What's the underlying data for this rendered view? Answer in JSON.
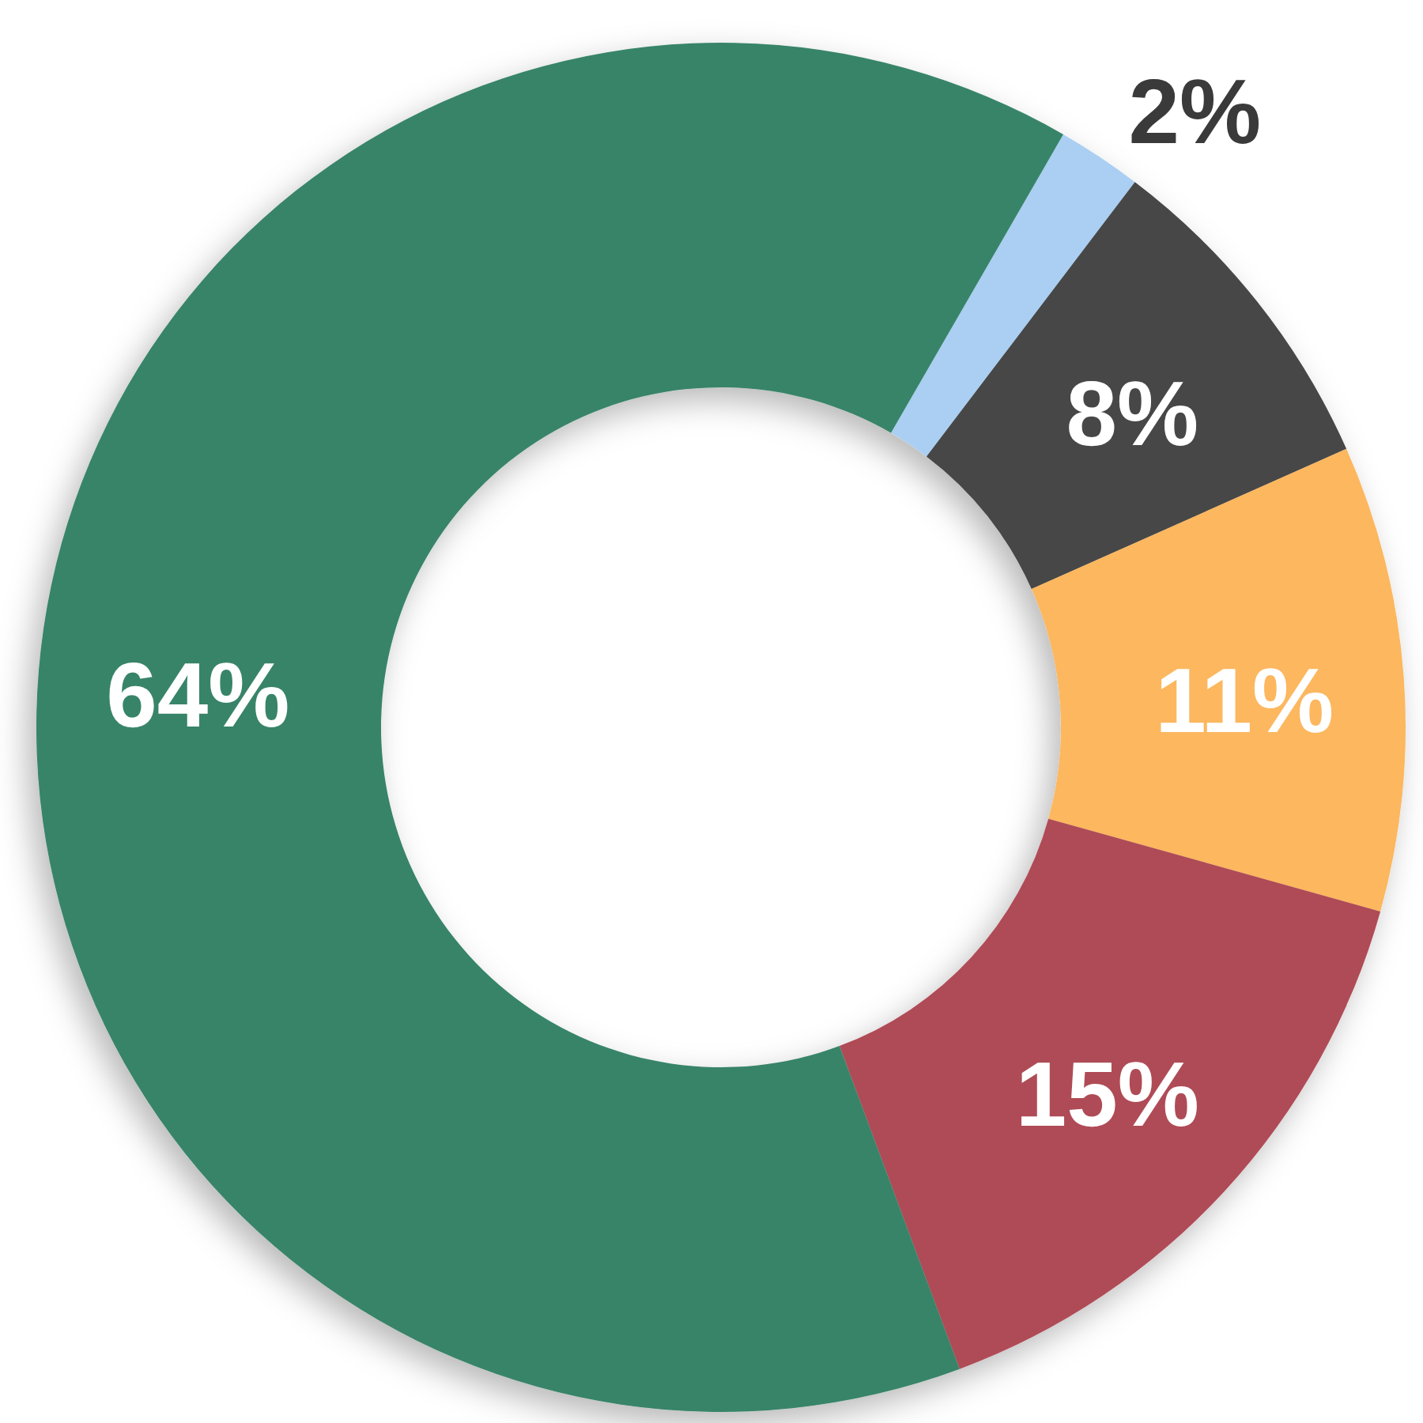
{
  "chart_data": {
    "type": "donut",
    "categories": [
      null,
      null,
      null,
      null,
      null
    ],
    "values": [
      2,
      8,
      11,
      15,
      64
    ],
    "colors": [
      "#aacff2",
      "#464646",
      "#fcb75f",
      "#af4b57",
      "#388469"
    ],
    "value_labels": [
      "2%",
      "8%",
      "11%",
      "15%",
      "64%"
    ]
  }
}
